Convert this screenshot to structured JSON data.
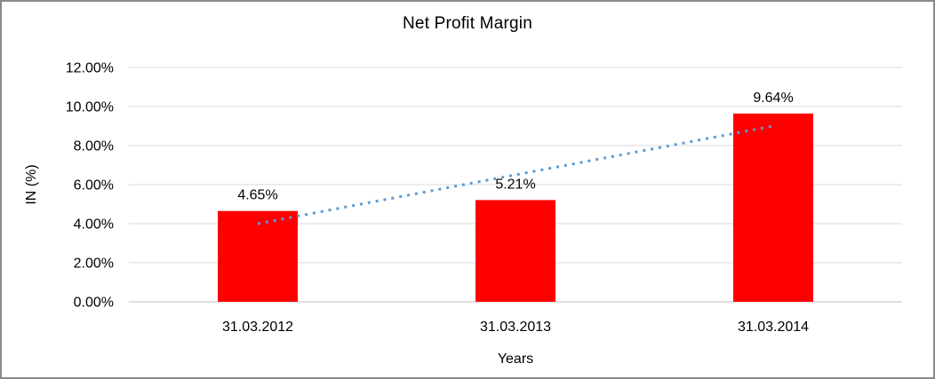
{
  "chart_data": {
    "type": "bar",
    "title": "Net Profit Margin",
    "xlabel": "Years",
    "ylabel": "IN (%)",
    "categories": [
      "31.03.2012",
      "31.03.2013",
      "31.03.2014"
    ],
    "series": [
      {
        "name": "Net Profit Margin",
        "values": [
          4.65,
          5.21,
          9.64
        ]
      }
    ],
    "data_labels": [
      "4.65%",
      "5.21%",
      "9.64%"
    ],
    "ylim": [
      0,
      12
    ],
    "yticks": [
      {
        "value": 0,
        "label": "0.00%"
      },
      {
        "value": 2,
        "label": "2.00%"
      },
      {
        "value": 4,
        "label": "4.00%"
      },
      {
        "value": 6,
        "label": "6.00%"
      },
      {
        "value": 8,
        "label": "8.00%"
      },
      {
        "value": 10,
        "label": "10.00%"
      },
      {
        "value": 12,
        "label": "12.00%"
      }
    ],
    "grid": "horizontal",
    "legend": "none",
    "trendline": {
      "type": "linear",
      "style": "dotted",
      "start_value": 4.0,
      "end_value": 9.0
    },
    "colors": {
      "bar": "#FF0000",
      "trendline": "#5B9BD5",
      "gridline": "#D9D9D9",
      "axis_line": "#BFBFBF",
      "text": "#000000",
      "background": "#FFFFFF",
      "border": "#8A8A8A"
    }
  }
}
